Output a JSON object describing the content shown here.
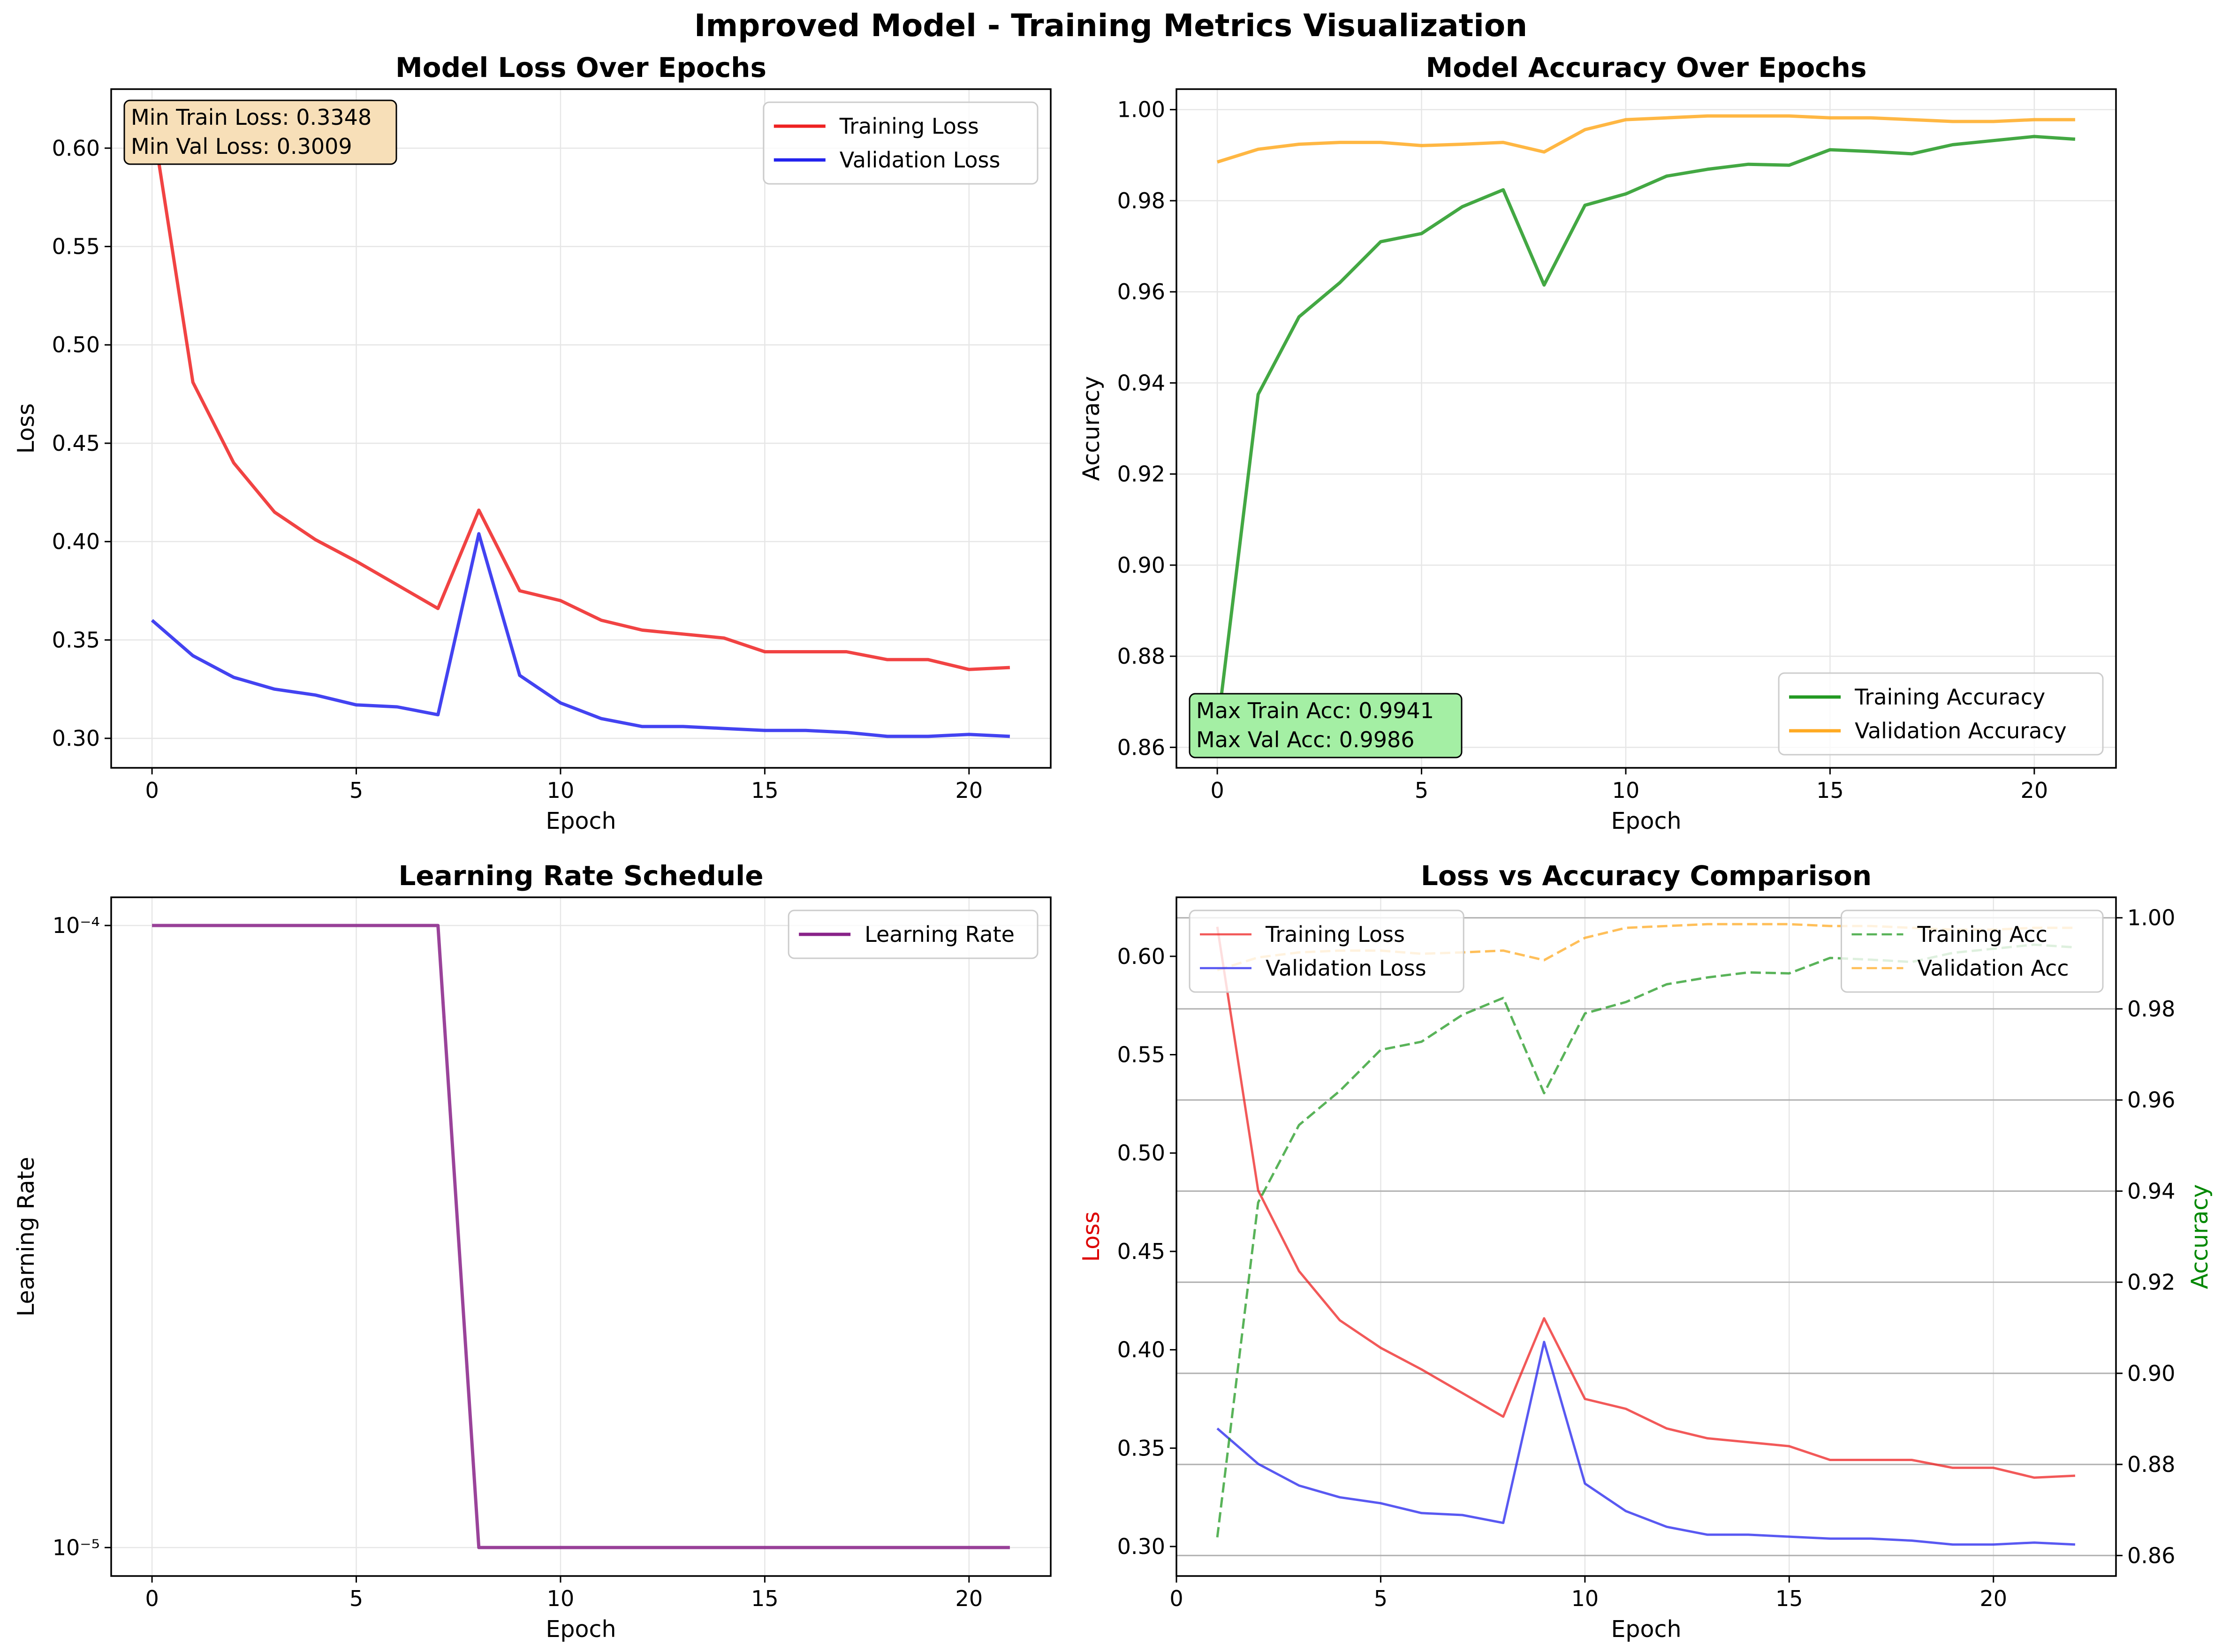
{
  "figure": {
    "suptitle": "Improved Model - Training Metrics Visualization"
  },
  "colors": {
    "train_loss": "#ee2222",
    "val_loss": "#2222ee",
    "train_acc": "#229922",
    "val_acc": "#ffaa22",
    "lr": "#882288",
    "loss_axis": "#dd0000",
    "acc_axis": "#008800",
    "box_orange": "#f7dfb8",
    "box_green": "#a4efa4"
  },
  "chart_data": [
    {
      "id": "loss",
      "type": "line",
      "title": "Model Loss Over Epochs",
      "xlabel": "Epoch",
      "ylabel": "Loss",
      "xlim": [
        -1,
        22
      ],
      "ylim": [
        0.285,
        0.63
      ],
      "xticks": [
        0,
        5,
        10,
        15,
        20
      ],
      "yticks": [
        0.3,
        0.35,
        0.4,
        0.45,
        0.5,
        0.55,
        0.6
      ],
      "ytick_labels": [
        "0.30",
        "0.35",
        "0.40",
        "0.45",
        "0.50",
        "0.55",
        "0.60"
      ],
      "grid": true,
      "legend": "upper right",
      "x": [
        0,
        1,
        2,
        3,
        4,
        5,
        6,
        7,
        8,
        9,
        10,
        11,
        12,
        13,
        14,
        15,
        16,
        17,
        18,
        19,
        20,
        21
      ],
      "series": [
        {
          "name": "Training Loss",
          "color": "train_loss",
          "values": [
            0.615,
            0.481,
            0.44,
            0.415,
            0.401,
            0.39,
            0.378,
            0.366,
            0.416,
            0.375,
            0.37,
            0.36,
            0.355,
            0.353,
            0.351,
            0.344,
            0.344,
            0.344,
            0.34,
            0.34,
            0.335,
            0.336
          ]
        },
        {
          "name": "Validation Loss",
          "color": "val_loss",
          "values": [
            0.36,
            0.342,
            0.331,
            0.325,
            0.322,
            0.317,
            0.316,
            0.312,
            0.404,
            0.332,
            0.318,
            0.31,
            0.306,
            0.306,
            0.305,
            0.304,
            0.304,
            0.303,
            0.301,
            0.301,
            0.302,
            0.301
          ]
        }
      ],
      "annotation": {
        "lines": [
          "Min Train Loss: 0.3348",
          "Min Val Loss: 0.3009"
        ],
        "box": "box_orange",
        "position": "top-left"
      }
    },
    {
      "id": "acc",
      "type": "line",
      "title": "Model Accuracy Over Epochs",
      "xlabel": "Epoch",
      "ylabel": "Accuracy",
      "xlim": [
        -1,
        22
      ],
      "ylim": [
        0.8555,
        1.0045
      ],
      "xticks": [
        0,
        5,
        10,
        15,
        20
      ],
      "yticks": [
        0.86,
        0.88,
        0.9,
        0.92,
        0.94,
        0.96,
        0.98,
        1.0
      ],
      "ytick_labels": [
        "0.86",
        "0.88",
        "0.90",
        "0.92",
        "0.94",
        "0.96",
        "0.98",
        "1.00"
      ],
      "grid": true,
      "legend": "lower right",
      "x": [
        0,
        1,
        2,
        3,
        4,
        5,
        6,
        7,
        8,
        9,
        10,
        11,
        12,
        13,
        14,
        15,
        16,
        17,
        18,
        19,
        20,
        21
      ],
      "series": [
        {
          "name": "Training Accuracy",
          "color": "train_acc",
          "values": [
            0.864,
            0.9375,
            0.9545,
            0.962,
            0.971,
            0.9728,
            0.9787,
            0.9824,
            0.9615,
            0.979,
            0.9815,
            0.9854,
            0.9869,
            0.988,
            0.9878,
            0.9912,
            0.9908,
            0.9903,
            0.9923,
            0.9932,
            0.9941,
            0.9935
          ]
        },
        {
          "name": "Validation Accuracy",
          "color": "val_acc",
          "values": [
            0.9885,
            0.9913,
            0.9924,
            0.9928,
            0.9928,
            0.9921,
            0.9924,
            0.9928,
            0.9907,
            0.9956,
            0.9978,
            0.9982,
            0.9986,
            0.9986,
            0.9986,
            0.9982,
            0.9982,
            0.9978,
            0.9974,
            0.9974,
            0.9978,
            0.9978
          ]
        }
      ],
      "annotation": {
        "lines": [
          "Max Train Acc: 0.9941",
          "Max Val Acc: 0.9986"
        ],
        "box": "box_green",
        "position": "bottom-left"
      }
    },
    {
      "id": "lr",
      "type": "line",
      "title": "Learning Rate Schedule",
      "xlabel": "Epoch",
      "ylabel": "Learning Rate",
      "xlim": [
        -1,
        22
      ],
      "ylim": [
        9e-06,
        0.000111
      ],
      "yscale": "log",
      "xticks": [
        0,
        5,
        10,
        15,
        20
      ],
      "yticks": [
        0.0001,
        1e-05
      ],
      "ytick_labels": [
        "10⁻⁴",
        "10⁻⁵"
      ],
      "grid": true,
      "legend": "upper right",
      "x": [
        0,
        1,
        2,
        3,
        4,
        5,
        6,
        7,
        8,
        9,
        10,
        11,
        12,
        13,
        14,
        15,
        16,
        17,
        18,
        19,
        20,
        21
      ],
      "series": [
        {
          "name": "Learning Rate",
          "color": "lr",
          "values": [
            0.0001,
            0.0001,
            0.0001,
            0.0001,
            0.0001,
            0.0001,
            0.0001,
            0.0001,
            1e-05,
            1e-05,
            1e-05,
            1e-05,
            1e-05,
            1e-05,
            1e-05,
            1e-05,
            1e-05,
            1e-05,
            1e-05,
            1e-05,
            1e-05,
            1e-05
          ]
        }
      ]
    },
    {
      "id": "combo",
      "type": "line",
      "title": "Loss vs Accuracy Comparison",
      "xlabel": "Epoch",
      "ylabel": "Loss",
      "ylabel_right": "Accuracy",
      "xlim": [
        0,
        23
      ],
      "ylim": [
        0.285,
        0.63
      ],
      "ylim_right": [
        0.8555,
        1.0045
      ],
      "xticks": [
        0,
        5,
        10,
        15,
        20
      ],
      "yticks": [
        0.3,
        0.35,
        0.4,
        0.45,
        0.5,
        0.55,
        0.6
      ],
      "ytick_labels": [
        "0.30",
        "0.35",
        "0.40",
        "0.45",
        "0.50",
        "0.55",
        "0.60"
      ],
      "yticks_right": [
        0.86,
        0.88,
        0.9,
        0.92,
        0.94,
        0.96,
        0.98,
        1.0
      ],
      "ytick_labels_right": [
        "0.86",
        "0.88",
        "0.90",
        "0.92",
        "0.94",
        "0.96",
        "0.98",
        "1.00"
      ],
      "grid": true,
      "legend_left": "upper left",
      "legend_right": "upper right",
      "x": [
        1,
        2,
        3,
        4,
        5,
        6,
        7,
        8,
        9,
        10,
        11,
        12,
        13,
        14,
        15,
        16,
        17,
        18,
        19,
        20,
        21,
        22
      ],
      "series": [
        {
          "name": "Training Loss",
          "color": "train_loss",
          "axis": "left",
          "dash": false,
          "values": [
            0.615,
            0.481,
            0.44,
            0.415,
            0.401,
            0.39,
            0.378,
            0.366,
            0.416,
            0.375,
            0.37,
            0.36,
            0.355,
            0.353,
            0.351,
            0.344,
            0.344,
            0.344,
            0.34,
            0.34,
            0.335,
            0.336
          ]
        },
        {
          "name": "Validation Loss",
          "color": "val_loss",
          "axis": "left",
          "dash": false,
          "values": [
            0.36,
            0.342,
            0.331,
            0.325,
            0.322,
            0.317,
            0.316,
            0.312,
            0.404,
            0.332,
            0.318,
            0.31,
            0.306,
            0.306,
            0.305,
            0.304,
            0.304,
            0.303,
            0.301,
            0.301,
            0.302,
            0.301
          ]
        },
        {
          "name": "Training Acc",
          "color": "train_acc",
          "axis": "right",
          "dash": true,
          "values": [
            0.864,
            0.9375,
            0.9545,
            0.962,
            0.971,
            0.9728,
            0.9787,
            0.9824,
            0.9615,
            0.979,
            0.9815,
            0.9854,
            0.9869,
            0.988,
            0.9878,
            0.9912,
            0.9908,
            0.9903,
            0.9923,
            0.9932,
            0.9941,
            0.9935
          ]
        },
        {
          "name": "Validation Acc",
          "color": "val_acc",
          "axis": "right",
          "dash": true,
          "values": [
            0.9885,
            0.9913,
            0.9924,
            0.9928,
            0.9928,
            0.9921,
            0.9924,
            0.9928,
            0.9907,
            0.9956,
            0.9978,
            0.9982,
            0.9986,
            0.9986,
            0.9986,
            0.9982,
            0.9982,
            0.9978,
            0.9974,
            0.9974,
            0.9978,
            0.9978
          ]
        }
      ]
    }
  ]
}
